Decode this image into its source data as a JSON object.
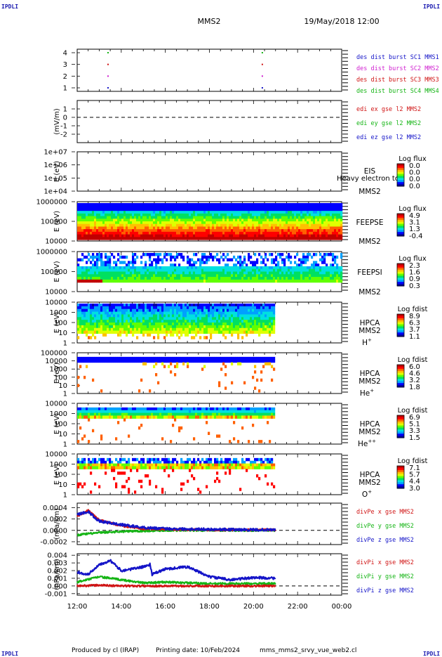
{
  "header": {
    "corner_tl": "IPDLI",
    "corner_tr": "IPDLI",
    "corner_bl": "IPDLI",
    "corner_br": "IPDLI",
    "spacecraft": "MMS2",
    "datetime": "19/May/2018 12:00"
  },
  "footer": {
    "produced_by": "Produced by cl (IRAP)",
    "printing_date": "Printing date: 10/Feb/2024",
    "filename": "mms_mms2_srvy_vue_web2.cl"
  },
  "colors": {
    "blue": "#1414c8",
    "magenta": "#d020d0",
    "red": "#d01414",
    "green": "#14b414",
    "colormap": [
      "#0000a0",
      "#0000ff",
      "#00a0ff",
      "#00e0e0",
      "#00e060",
      "#60ff00",
      "#e0ff00",
      "#ffc000",
      "#ff6000",
      "#ff0000",
      "#c00000"
    ]
  },
  "chart_data": {
    "type": "multi-panel time series",
    "x_ticks": [
      "12:00",
      "14:00",
      "16:00",
      "18:00",
      "20:00",
      "22:00",
      "00:00"
    ],
    "panels": [
      {
        "id": "p1",
        "type": "scatter",
        "ylim": [
          0.7,
          4.3
        ],
        "y_ticks": [
          "1",
          "2",
          "3",
          "4"
        ],
        "legend": [
          {
            "text": "des dist burst SC1 MMS1",
            "color": "blue"
          },
          {
            "text": "des dist burst SC2 MMS2",
            "color": "magenta"
          },
          {
            "text": "des dist burst SC3 MMS3",
            "color": "red"
          },
          {
            "text": "des dist burst SC4 MMS4",
            "color": "green"
          }
        ],
        "points": [
          {
            "x": 13.4,
            "y": 4,
            "color": "green"
          },
          {
            "x": 13.4,
            "y": 3,
            "color": "red"
          },
          {
            "x": 13.4,
            "y": 2,
            "color": "magenta"
          },
          {
            "x": 13.4,
            "y": 1,
            "color": "blue"
          },
          {
            "x": 20.4,
            "y": 4,
            "color": "green"
          },
          {
            "x": 20.4,
            "y": 3,
            "color": "red"
          },
          {
            "x": 20.4,
            "y": 2,
            "color": "magenta"
          },
          {
            "x": 20.4,
            "y": 1,
            "color": "blue"
          }
        ]
      },
      {
        "id": "p2",
        "type": "line",
        "ylabel": "(mV/m)",
        "ylim": [
          -3,
          2
        ],
        "y_ticks": [
          "1",
          "0",
          "-1",
          "-2"
        ],
        "zero_line": true,
        "legend": [
          {
            "text": "edi ex gse l2 MMS2",
            "color": "red"
          },
          {
            "text": "edi ey gse l2 MMS2",
            "color": "green"
          },
          {
            "text": "edi ez gse l2 MMS2",
            "color": "blue"
          }
        ]
      },
      {
        "id": "p3",
        "type": "spectrogram",
        "ylabel": "E (eV)",
        "y_ticks": [
          "1e+07",
          "1e+06",
          "1e+05",
          "1e+04"
        ],
        "labels": [
          "EIS",
          "MMS2"
        ],
        "overlay": "Heavy electron to",
        "cbar_title": "Log flux",
        "cbar_values": [
          "0.0",
          "0.0",
          "0.0",
          "0.0"
        ]
      },
      {
        "id": "p4",
        "type": "spectrogram",
        "ylabel": "E (eV)",
        "y_ticks": [
          "1000000",
          "100000",
          "10000"
        ],
        "labels": [
          "FEEPSE",
          "MMS2"
        ],
        "cbar_title": "Log flux",
        "cbar_values": [
          "4.9",
          "3.1",
          "1.3",
          "-0.4"
        ],
        "data_end": 24
      },
      {
        "id": "p5",
        "type": "spectrogram",
        "ylabel": "E (eV)",
        "y_ticks": [
          "1000000",
          "100000",
          "10000"
        ],
        "labels": [
          "FEEPSI",
          "MMS2"
        ],
        "cbar_title": "Log flux",
        "cbar_values": [
          "2.3",
          "1.6",
          "0.9",
          "0.3"
        ],
        "data_end": 24
      },
      {
        "id": "p6",
        "type": "spectrogram",
        "ylabel": "E (eV)",
        "y_ticks": [
          "10000",
          "1000",
          "100",
          "10",
          "1"
        ],
        "labels": [
          "HPCA",
          "MMS2"
        ],
        "species": "H",
        "species_sup": "+",
        "cbar_title": "Log fdist",
        "cbar_values": [
          "8.9",
          "6.3",
          "3.7",
          "1.1"
        ],
        "data_end": 21
      },
      {
        "id": "p7",
        "type": "spectrogram",
        "ylabel": "E (eV)",
        "y_ticks": [
          "100000",
          "10000",
          "1000",
          "100",
          "10",
          "1"
        ],
        "labels": [
          "HPCA",
          "MMS2"
        ],
        "species": "He",
        "species_sup": "+",
        "cbar_title": "Log fdist",
        "cbar_values": [
          "6.0",
          "4.6",
          "3.2",
          "1.8"
        ],
        "data_end": 21
      },
      {
        "id": "p8",
        "type": "spectrogram",
        "ylabel": "E (eV)",
        "y_ticks": [
          "10000",
          "1000",
          "100",
          "10",
          "1"
        ],
        "labels": [
          "HPCA",
          "MMS2"
        ],
        "species": "He",
        "species_sup": "++",
        "cbar_title": "Log fdist",
        "cbar_values": [
          "6.9",
          "5.1",
          "3.3",
          "1.5"
        ],
        "data_end": 21
      },
      {
        "id": "p9",
        "type": "spectrogram",
        "ylabel": "E (eV)",
        "y_ticks": [
          "10000",
          "1000",
          "100",
          "10",
          "1"
        ],
        "labels": [
          "HPCA",
          "MMS2"
        ],
        "species": "O",
        "species_sup": "+",
        "cbar_title": "Log fdist",
        "cbar_values": [
          "7.1",
          "5.7",
          "4.4",
          "3.0"
        ],
        "data_end": 21
      },
      {
        "id": "p10",
        "type": "line",
        "ylabel": "(nPa/km)",
        "ylim": [
          -0.00025,
          0.00048
        ],
        "y_ticks": [
          "0.0004",
          "0.0002",
          "0.0000",
          "-0.0002"
        ],
        "y_tick_values": [
          0.0004,
          0.0002,
          0.0,
          -0.0002
        ],
        "zero_line": true,
        "legend": [
          {
            "text": "divPe x gse MMS2",
            "color": "red"
          },
          {
            "text": "divPe y gse MMS2",
            "color": "green"
          },
          {
            "text": "divPe z gse MMS2",
            "color": "blue"
          }
        ],
        "series": [
          {
            "color": "green",
            "x": [
              12,
              12.5,
              13,
              14,
              15,
              16,
              18,
              20,
              21
            ],
            "y": [
              -8e-05,
              -6e-05,
              -4e-05,
              -2e-05,
              -1e-05,
              0.0,
              0.0,
              0.0,
              0.0
            ]
          },
          {
            "color": "red",
            "x": [
              12,
              12.5,
              13,
              14,
              15,
              16,
              18,
              20,
              21
            ],
            "y": [
              0.00025,
              0.00035,
              0.00018,
              8e-05,
              3e-05,
              2e-05,
              1e-05,
              1e-05,
              1e-05
            ]
          },
          {
            "color": "blue",
            "x": [
              12,
              12.5,
              13,
              14,
              15,
              16,
              18,
              20,
              21
            ],
            "y": [
              0.00028,
              0.00033,
              0.00016,
              0.0001,
              5e-05,
              3e-05,
              2e-05,
              1e-05,
              1e-05
            ]
          }
        ]
      },
      {
        "id": "p11",
        "type": "line",
        "ylabel": "(nPa/km)",
        "ylim": [
          -0.0012,
          0.0042
        ],
        "y_ticks": [
          "0.004",
          "0.003",
          "0.002",
          "0.001",
          "0.000",
          "-0.001"
        ],
        "y_tick_values": [
          0.004,
          0.003,
          0.002,
          0.001,
          0.0,
          -0.001
        ],
        "zero_line": true,
        "legend": [
          {
            "text": "divPi x gse MMS2",
            "color": "red"
          },
          {
            "text": "divPi y gse MMS2",
            "color": "green"
          },
          {
            "text": "divPi z gse MMS2",
            "color": "blue"
          }
        ],
        "series": [
          {
            "color": "green",
            "x": [
              12,
              13,
              14,
              15,
              16,
              17,
              18,
              19,
              20,
              21
            ],
            "y": [
              0.0005,
              0.0012,
              0.0008,
              0.0004,
              0.0005,
              0.0004,
              0.0003,
              0.0003,
              0.0003,
              0.0003
            ]
          },
          {
            "color": "red",
            "x": [
              12,
              13,
              14,
              15,
              16,
              17,
              18,
              19,
              20,
              21
            ],
            "y": [
              0.0,
              0.0001,
              0.0,
              0.0,
              0.0,
              0.0,
              0.0,
              0.0,
              0.0,
              0.0
            ]
          },
          {
            "color": "blue",
            "x": [
              12,
              12.5,
              13,
              13.5,
              14,
              14.5,
              15,
              15.3,
              15.4,
              16,
              17,
              18,
              19,
              20,
              21
            ],
            "y": [
              0.0018,
              0.0015,
              0.0028,
              0.0033,
              0.002,
              0.0022,
              0.0025,
              0.0028,
              0.0015,
              0.0022,
              0.0025,
              0.0012,
              0.0008,
              0.0011,
              0.001
            ]
          }
        ]
      }
    ]
  }
}
